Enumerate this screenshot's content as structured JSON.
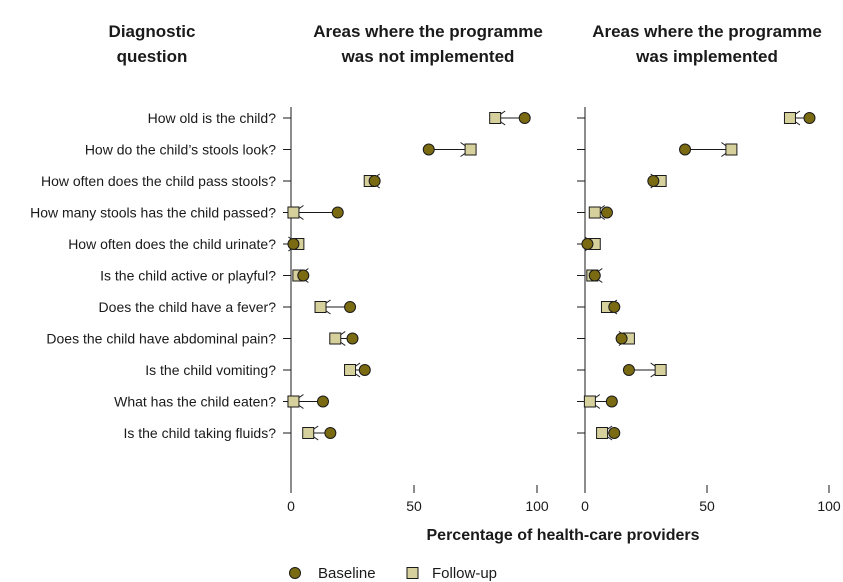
{
  "chart_data": {
    "type": "scatter",
    "headers": {
      "question_col": [
        "Diagnostic",
        "question"
      ],
      "panel_left": [
        "Areas where the programme",
        "was not implemented"
      ],
      "panel_right": [
        "Areas where the programme",
        "was implemented"
      ]
    },
    "xlabel": "Percentage of health-care providers",
    "xlim": [
      0,
      100
    ],
    "xticks": [
      "0",
      "50",
      "100"
    ],
    "legend": {
      "position": "bottom",
      "baseline": "Baseline",
      "followup": "Follow-up"
    },
    "colors": {
      "baseline": "#7a6a12",
      "followup": "#d6d09c",
      "stroke": "#1a1a1a"
    },
    "categories": [
      "How old is the child?",
      "How do the child’s stools look?",
      "How often does the child pass stools?",
      "How many stools has the child passed?",
      "How often does the child urinate?",
      "Is the child active or playful?",
      "Does the child have a fever?",
      "Does the child have abdominal pain?",
      "Is the child vomiting?",
      "What has the child eaten?",
      "Is the child taking fluids?"
    ],
    "panels": [
      {
        "name": "not-implemented",
        "series": [
          {
            "name": "Baseline",
            "values": [
              95,
              56,
              34,
              19,
              1,
              5,
              24,
              25,
              30,
              13,
              16
            ]
          },
          {
            "name": "Follow-up",
            "values": [
              83,
              73,
              32,
              1,
              3,
              3,
              12,
              18,
              24,
              1,
              7
            ]
          }
        ]
      },
      {
        "name": "implemented",
        "series": [
          {
            "name": "Baseline",
            "values": [
              92,
              41,
              28,
              9,
              1,
              4,
              12,
              15,
              18,
              11,
              12
            ]
          },
          {
            "name": "Follow-up",
            "values": [
              84,
              60,
              31,
              4,
              4,
              3,
              9,
              18,
              31,
              2,
              7
            ]
          }
        ]
      }
    ]
  }
}
